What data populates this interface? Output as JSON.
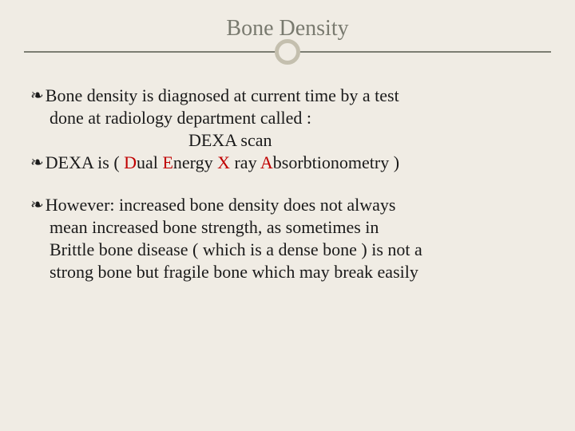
{
  "slide": {
    "title": "Bone Density",
    "title_color": "#797a6f",
    "title_fontsize": 28,
    "body_fontsize": 22,
    "body_color": "#1a1a1a",
    "background_color": "#f0ece4",
    "divider_color": "#7c7d72",
    "circle_border_color": "#c4bfae",
    "accent_red": "#c00000",
    "bullet_glyph": "❧",
    "para1_line1": "Bone density is diagnosed at current time by a test",
    "para1_line2": "done at radiology department called :",
    "para1_line3": "DEXA scan",
    "para2_prefix": "DEXA is ( ",
    "para2_d": "D",
    "para2_d_rest": "ual ",
    "para2_e": "E",
    "para2_e_rest": "nergy ",
    "para2_x": "X",
    "para2_x_rest": " ray ",
    "para2_a": "A",
    "para2_a_rest": "bsorbtionometry )",
    "para3_line1": "However: increased bone density does not always",
    "para3_line2": "mean increased bone strength, as sometimes in",
    "para3_line3": "Brittle bone disease ( which is a dense bone ) is not a",
    "para3_line4": "strong bone but fragile bone which may break easily"
  }
}
